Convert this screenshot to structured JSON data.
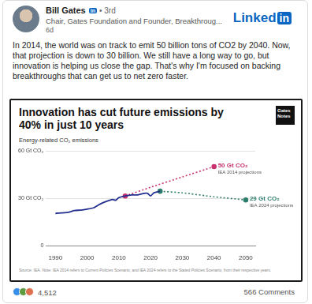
{
  "post": {
    "author": "Bill Gates",
    "badge": "in",
    "degree": "• 3rd",
    "headline": "Chair, Gates Foundation and Founder, Breakthroug...",
    "age": "6d",
    "platform_logo": [
      "Linked",
      "in"
    ],
    "text": "In 2014, the world was on track to emit 50 billion tons of CO2 by 2040. Now, that projection is down to 30 billion. We still have a long way to go, but innovation is helping us close the gap. That's why I'm focused on backing breakthroughs that can get us to net zero faster.",
    "reactions": "4,512",
    "comments": "566 Comments"
  },
  "chart_data": {
    "type": "line",
    "title": "Innovation has cut future emissions by 40% in just 10 years",
    "logo": "Gates Notes",
    "subtitle": "Energy-related CO₂ emissions",
    "source": "Source: IEA. Note: IEA 2014 refers to Current Policies Scenario, and IEA 2024 refers to the Stated Policies Scenario, from their respective years.",
    "xlim": [
      1987,
      2053
    ],
    "xticks": [
      1990,
      2000,
      2010,
      2020,
      2030,
      2040,
      2050
    ],
    "ylim": [
      0,
      60
    ],
    "yticks": [
      0,
      {
        "value": 30,
        "label": "30 Gt CO₂"
      },
      {
        "value": 60,
        "label": "60 Gt CO₂"
      }
    ],
    "grid": true,
    "series": [
      {
        "color": "#23308f",
        "line_style": "solid",
        "x": [
          1990,
          1992,
          1994,
          1996,
          1998,
          2000,
          2002,
          2004,
          2006,
          2008,
          2009,
          2010,
          2012,
          2014,
          2016,
          2018,
          2019,
          2020,
          2021,
          2022,
          2023
        ],
        "values": [
          20.5,
          20.8,
          21.2,
          22.3,
          22.6,
          23.2,
          24,
          26.3,
          28,
          29.3,
          28.8,
          30.5,
          31.5,
          32.2,
          32.2,
          33.2,
          33.2,
          31.5,
          33.5,
          34,
          34.5
        ]
      },
      {
        "color": "#c7336f",
        "line_style": "dotted",
        "marker": "circle",
        "x": [
          2012,
          2020,
          2030,
          2040
        ],
        "values": [
          31.5,
          37,
          43.5,
          50
        ]
      },
      {
        "color": "#2e7d6b",
        "line_style": "dotted",
        "marker": "circle",
        "x": [
          2023,
          2030,
          2040,
          2050
        ],
        "values": [
          34.5,
          33.5,
          31,
          29
        ]
      }
    ],
    "annotations": [
      {
        "x": 2040,
        "value": 50,
        "label": "50 Gt CO₂",
        "text": "IEA 2014 projections",
        "color": "#c7336f"
      },
      {
        "x": 2050,
        "value": 29,
        "label": "29 Gt CO₂",
        "text": "IEA 2024 projections",
        "color": "#2e7d6b"
      }
    ]
  }
}
